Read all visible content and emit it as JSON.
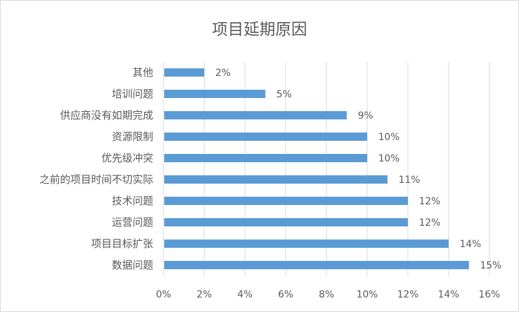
{
  "chart_data": {
    "type": "bar",
    "orientation": "horizontal",
    "title": "项目延期原因",
    "xlabel": "",
    "ylabel": "",
    "categories": [
      "其他",
      "培训问题",
      "供应商没有如期完成",
      "资源限制",
      "优先级冲突",
      "之前的项目时间不切实际",
      "技术问题",
      "运营问题",
      "项目目标扩张",
      "数据问题"
    ],
    "values": [
      2,
      5,
      9,
      10,
      10,
      11,
      12,
      12,
      14,
      15
    ],
    "value_labels": [
      "2%",
      "5%",
      "9%",
      "10%",
      "10%",
      "11%",
      "12%",
      "12%",
      "14%",
      "15%"
    ],
    "xlim": [
      0,
      16
    ],
    "xticks": [
      0,
      2,
      4,
      6,
      8,
      10,
      12,
      14,
      16
    ],
    "xtick_labels": [
      "0%",
      "2%",
      "4%",
      "6%",
      "8%",
      "10%",
      "12%",
      "14%",
      "16%"
    ],
    "grid": true,
    "legend": "none",
    "bar_color": "#5b9bd5"
  }
}
